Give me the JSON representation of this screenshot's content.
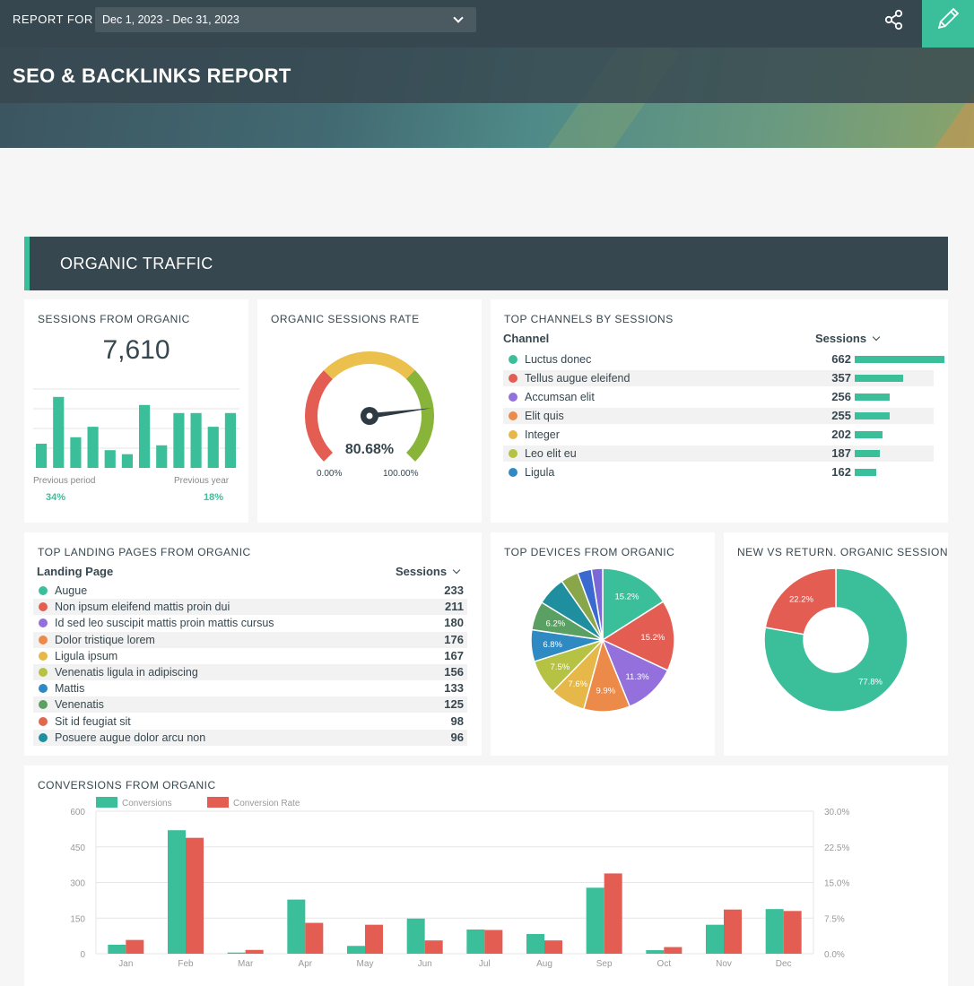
{
  "topbar": {
    "report_for_label": "REPORT FOR",
    "date_range": "Dec 1, 2023 - Dec 31, 2023"
  },
  "header": {
    "title": "SEO & BACKLINKS REPORT"
  },
  "section": {
    "title": "ORGANIC TRAFFIC"
  },
  "sessions_from_organic": {
    "title": "SESSIONS FROM ORGANIC",
    "value": "7,610",
    "previous_period_label": "Previous period",
    "previous_period_value": "34%",
    "previous_year_label": "Previous year",
    "previous_year_value": "18%",
    "sparkline": [
      30,
      88,
      38,
      51,
      22,
      17,
      78,
      28,
      68,
      68,
      51,
      68
    ]
  },
  "organic_sessions_rate": {
    "title": "ORGANIC SESSIONS RATE",
    "value": "80.68%",
    "percent": 80.68,
    "min_label": "0.00%",
    "max_label": "100.00%"
  },
  "top_channels": {
    "title": "TOP CHANNELS BY SESSIONS",
    "col_channel": "Channel",
    "col_sessions": "Sessions",
    "max": 662,
    "rows": [
      {
        "label": "Luctus donec",
        "value": 662,
        "color": "#3bbf9b"
      },
      {
        "label": "Tellus augue eleifend",
        "value": 357,
        "color": "#e35d52"
      },
      {
        "label": "Accumsan elit",
        "value": 256,
        "color": "#9370db"
      },
      {
        "label": "Elit quis",
        "value": 255,
        "color": "#ec8a4a"
      },
      {
        "label": "Integer",
        "value": 202,
        "color": "#e6b84a"
      },
      {
        "label": "Leo elit eu",
        "value": 187,
        "color": "#b5c243"
      },
      {
        "label": "Ligula",
        "value": 162,
        "color": "#2f8ac4"
      }
    ]
  },
  "top_landing_pages": {
    "title": "TOP LANDING PAGES FROM ORGANIC",
    "col_page": "Landing Page",
    "col_sessions": "Sessions",
    "rows": [
      {
        "label": "Augue",
        "value": 233,
        "color": "#3bbf9b"
      },
      {
        "label": "Non ipsum eleifend mattis proin dui",
        "value": 211,
        "color": "#e35d52"
      },
      {
        "label": "Id sed leo suscipit mattis proin mattis cursus",
        "value": 180,
        "color": "#9370db"
      },
      {
        "label": "Dolor tristique lorem",
        "value": 176,
        "color": "#ec8a4a"
      },
      {
        "label": "Ligula ipsum",
        "value": 167,
        "color": "#e6b84a"
      },
      {
        "label": "Venenatis ligula in adipiscing",
        "value": 156,
        "color": "#b5c243"
      },
      {
        "label": "Mattis",
        "value": 133,
        "color": "#2f8ac4"
      },
      {
        "label": "Venenatis",
        "value": 125,
        "color": "#5aa062"
      },
      {
        "label": "Sit id feugiat sit",
        "value": 98,
        "color": "#e0684e"
      },
      {
        "label": "Posuere augue dolor arcu non",
        "value": 96,
        "color": "#1f8fa0"
      }
    ]
  },
  "top_devices": {
    "title": "TOP DEVICES FROM ORGANIC",
    "slices": [
      {
        "value": 15.2,
        "label": "15.2%",
        "color": "#3bbf9b"
      },
      {
        "value": 15.2,
        "label": "15.2%",
        "color": "#e35d52"
      },
      {
        "value": 11.3,
        "label": "11.3%",
        "color": "#9370db"
      },
      {
        "value": 9.9,
        "label": "9.9%",
        "color": "#ec8a4a"
      },
      {
        "value": 7.6,
        "label": "7.6%",
        "color": "#e6b84a"
      },
      {
        "value": 7.5,
        "label": "7.5%",
        "color": "#b5c243"
      },
      {
        "value": 6.8,
        "label": "6.8%",
        "color": "#2f8ac4"
      },
      {
        "value": 6.2,
        "label": "6.2%",
        "color": "#5aa062"
      },
      {
        "value": 6.2,
        "label": "",
        "color": "#1f8fa0"
      },
      {
        "value": 3.8,
        "label": "",
        "color": "#8aa64a"
      },
      {
        "value": 3.0,
        "label": "",
        "color": "#3a6ad0"
      },
      {
        "value": 2.4,
        "label": "",
        "color": "#7b68d6"
      }
    ]
  },
  "new_vs_returning": {
    "title": "NEW VS RETURN. ORGANIC SESSIONS",
    "slices": [
      {
        "value": 77.8,
        "label": "77.8%",
        "color": "#3bbf9b"
      },
      {
        "value": 22.2,
        "label": "22.2%",
        "color": "#e35d52"
      }
    ]
  },
  "conversions": {
    "title": "CONVERSIONS FROM ORGANIC",
    "legend": [
      {
        "name": "Conversions",
        "color": "#3bbf9b"
      },
      {
        "name": "Conversion Rate",
        "color": "#e35d52"
      }
    ],
    "left_ticks": [
      "0",
      "150",
      "300",
      "450",
      "600"
    ],
    "right_ticks": [
      "0.0%",
      "7.5%",
      "15.0%",
      "22.5%",
      "30.0%"
    ]
  },
  "chart_data": {
    "type": "bar",
    "categories": [
      "Jan",
      "Feb",
      "Mar",
      "Apr",
      "May",
      "Jun",
      "Jul",
      "Aug",
      "Sep",
      "Oct",
      "Nov",
      "Dec"
    ],
    "series": [
      {
        "name": "Conversions",
        "axis": "left",
        "values": [
          38,
          520,
          5,
          228,
          33,
          148,
          102,
          83,
          278,
          15,
          122,
          188
        ]
      },
      {
        "name": "Conversion Rate",
        "axis": "right",
        "values": [
          2.9,
          24.4,
          0.8,
          6.5,
          6.1,
          2.8,
          5.0,
          2.8,
          16.9,
          1.4,
          9.3,
          9.0
        ]
      }
    ],
    "ylim": [
      0,
      600
    ],
    "y2lim": [
      0,
      30
    ]
  }
}
